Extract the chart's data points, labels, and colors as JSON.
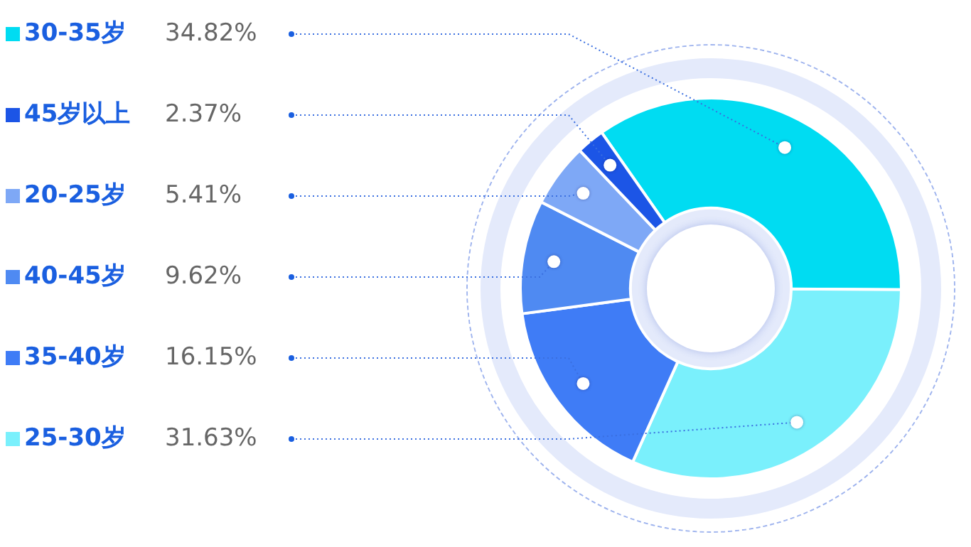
{
  "chart_data": {
    "type": "donut",
    "categories": [
      "30-35岁",
      "25-30岁",
      "35-40岁",
      "40-45岁",
      "20-25岁",
      "45岁以上"
    ],
    "values": [
      34.82,
      31.63,
      16.15,
      9.62,
      5.41,
      2.37
    ],
    "value_labels": [
      "34.82%",
      "31.63%",
      "16.15%",
      "9.62%",
      "5.41%",
      "2.37%"
    ],
    "legend": "left",
    "colors": [
      "#00dcf2",
      "#7af0fc",
      "#3f7cf6",
      "#4f8af2",
      "#7ea8f6",
      "#1c55e6"
    ]
  }
}
